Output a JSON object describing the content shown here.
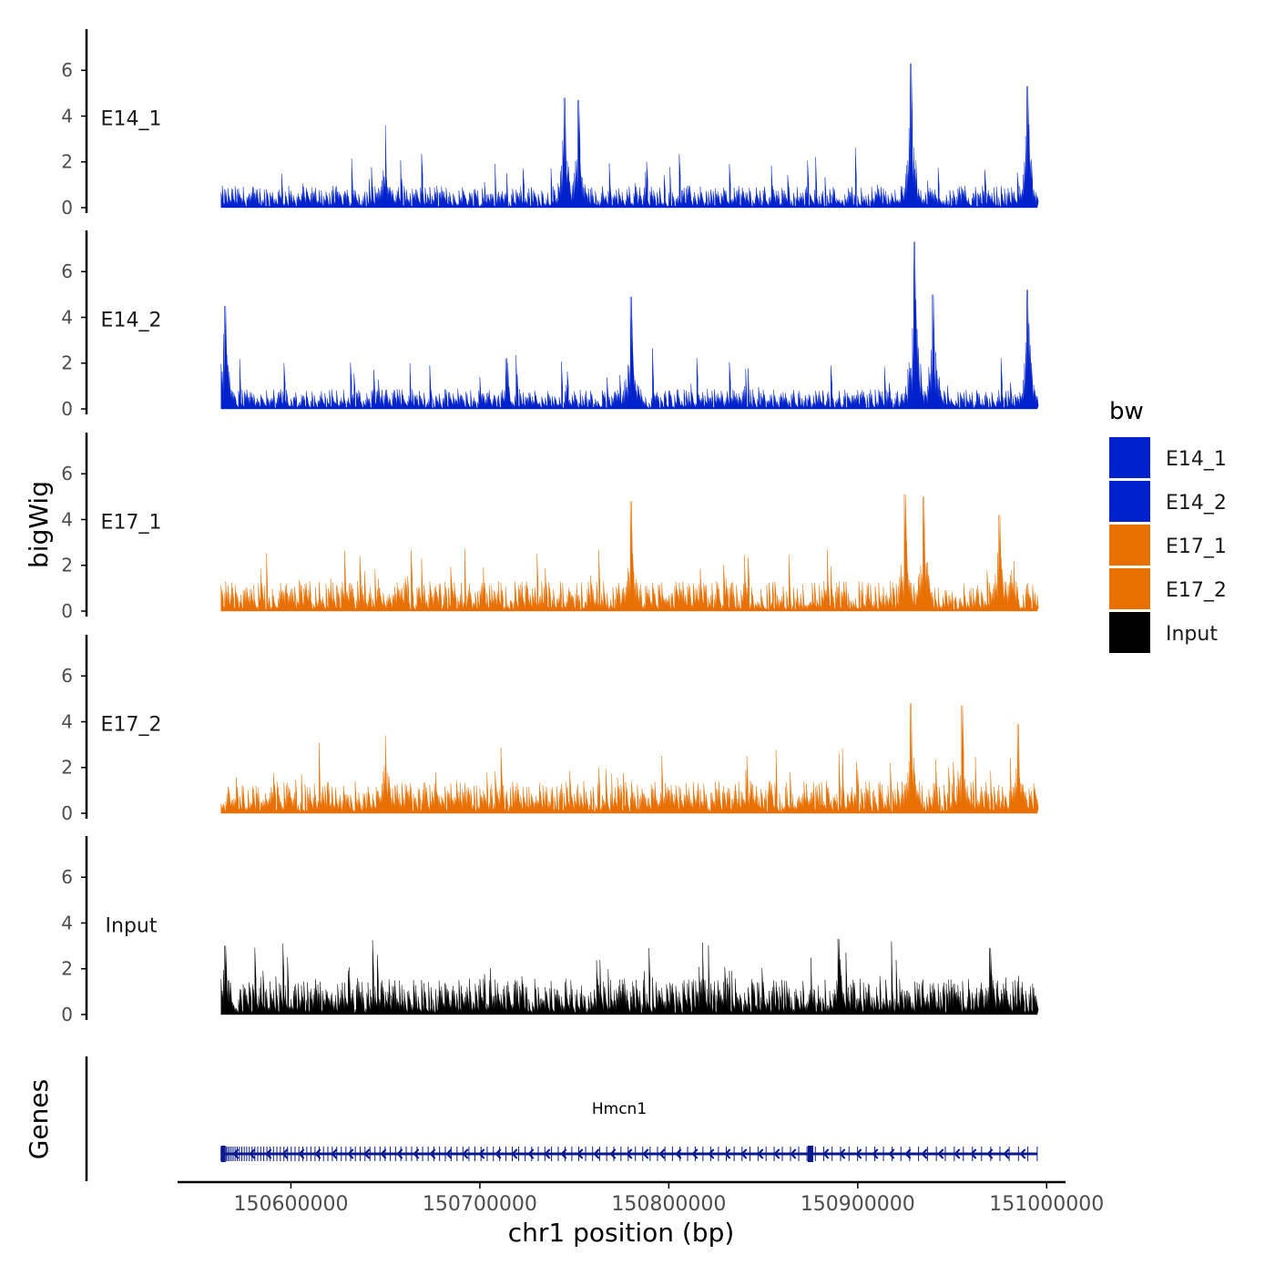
{
  "chart_data": {
    "type": "area",
    "ylabel": "bigWig",
    "xlabel": "chr1 position (bp)",
    "x_range": [
      150563000,
      150995000
    ],
    "xlim": [
      150540000,
      151010000
    ],
    "x_ticks": [
      150600000,
      150700000,
      150800000,
      150900000,
      151000000
    ],
    "x_tick_labels": [
      "150600000",
      "150700000",
      "150800000",
      "150900000",
      "151000000"
    ],
    "ylim": [
      0,
      7.8
    ],
    "y_ticks": [
      0,
      2,
      4,
      6
    ],
    "y_tick_labels": [
      "0",
      "2",
      "4",
      "6"
    ],
    "series": [
      {
        "name": "E14_1",
        "color": "#0022cc",
        "baseline": 0.55,
        "peaks": [
          [
            150745000,
            4.8
          ],
          [
            150752000,
            4.7
          ],
          [
            150928000,
            6.3
          ],
          [
            150990000,
            5.3
          ],
          [
            150650000,
            3.6
          ]
        ]
      },
      {
        "name": "E14_2",
        "color": "#0022cc",
        "baseline": 0.5,
        "peaks": [
          [
            150565000,
            4.5
          ],
          [
            150780000,
            4.9
          ],
          [
            150930000,
            7.3
          ],
          [
            150990000,
            5.2
          ],
          [
            150940000,
            5.0
          ]
        ]
      },
      {
        "name": "E17_1",
        "color": "#e87000",
        "baseline": 0.75,
        "peaks": [
          [
            150780000,
            4.8
          ],
          [
            150925000,
            5.1
          ],
          [
            150935000,
            5.0
          ],
          [
            150975000,
            4.2
          ]
        ]
      },
      {
        "name": "E17_2",
        "color": "#e87000",
        "baseline": 0.8,
        "peaks": [
          [
            150928000,
            4.8
          ],
          [
            150955000,
            4.7
          ],
          [
            150985000,
            3.9
          ],
          [
            150650000,
            3.4
          ]
        ]
      },
      {
        "name": "Input",
        "color": "#000000",
        "baseline": 0.9,
        "peaks": [
          [
            150565000,
            3.0
          ],
          [
            150890000,
            3.3
          ],
          [
            150970000,
            2.9
          ]
        ]
      }
    ],
    "legend": {
      "title": "bw",
      "entries": [
        "E14_1",
        "E14_2",
        "E17_1",
        "E17_2",
        "Input"
      ],
      "placement": "right"
    },
    "genes_panel": {
      "label": "Genes",
      "gene_name": "Hmcn1",
      "color": "#0a1a8c",
      "start": 150563000,
      "end": 150995000,
      "strand": "-"
    }
  }
}
